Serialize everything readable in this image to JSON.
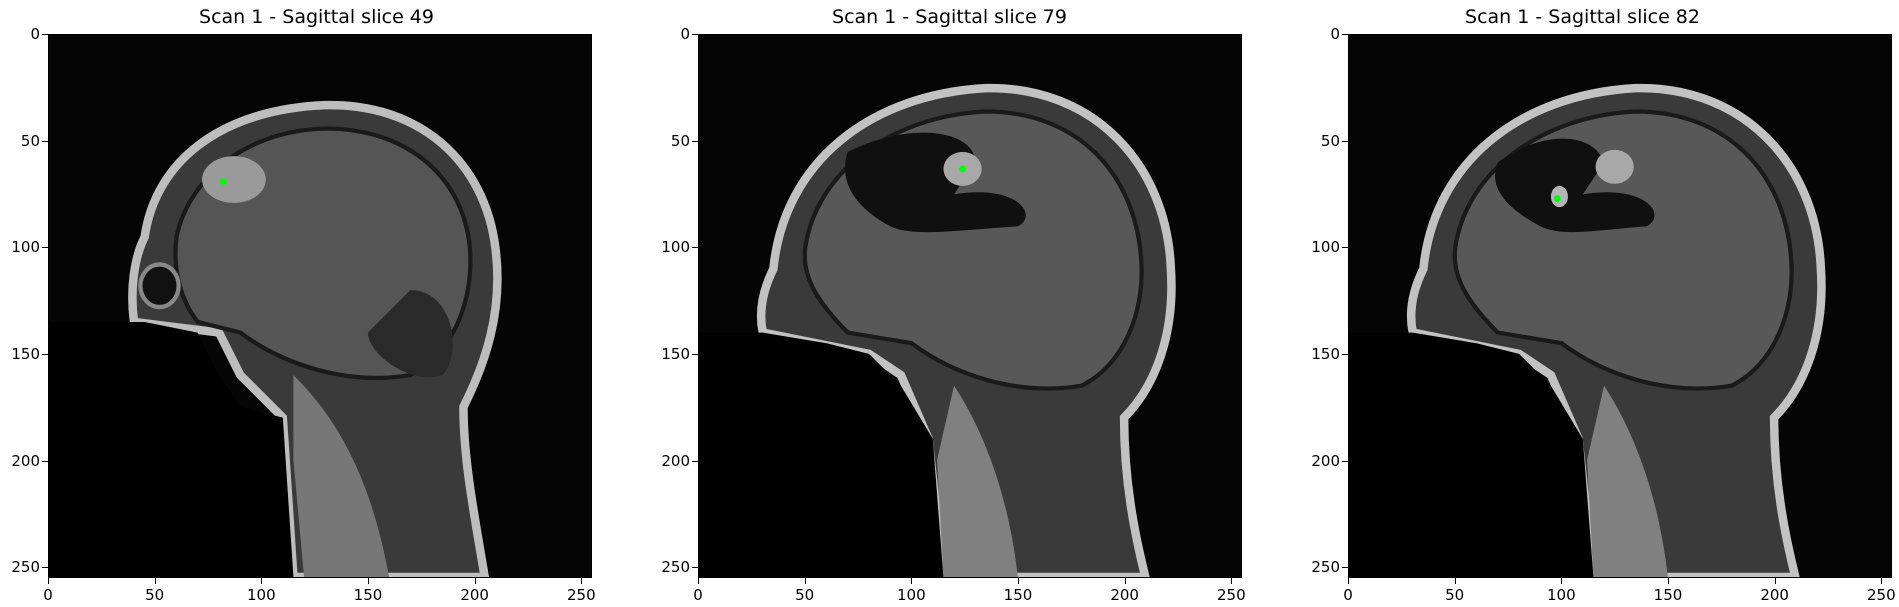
{
  "panels": [
    {
      "title": "Scan 1 - Sagittal slice 49",
      "marker_xy": [
        82,
        69
      ],
      "marker_color": "#00ff00"
    },
    {
      "title": "Scan 1 - Sagittal slice 79",
      "marker_xy": [
        124,
        63
      ],
      "marker_color": "#00ff00"
    },
    {
      "title": "Scan 1 - Sagittal slice 82",
      "marker_xy": [
        98,
        77
      ],
      "marker_color": "#00ff00"
    }
  ],
  "axes": {
    "xticks": [
      "0",
      "50",
      "100",
      "150",
      "200",
      "250"
    ],
    "yticks": [
      "0",
      "50",
      "100",
      "150",
      "200",
      "250"
    ],
    "xlim": [
      0,
      255
    ],
    "ylim": [
      0,
      255
    ]
  }
}
